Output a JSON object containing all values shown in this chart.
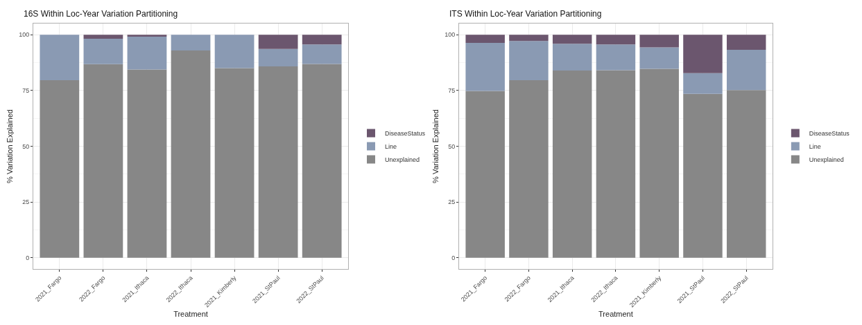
{
  "chart_data": [
    {
      "type": "bar",
      "stacked": true,
      "title": "16S Within Loc-Year Variation Partitioning",
      "xlabel": "Treatment",
      "ylabel": "% Variation Explained",
      "categories": [
        "2021_Fargo",
        "2022_Fargo",
        "2021_Ithaca",
        "2022_Ithaca",
        "2021_Kimberly",
        "2021_StPaul",
        "2022_StPaul"
      ],
      "ylim": [
        -5,
        105
      ],
      "yticks": [
        0,
        25,
        50,
        75,
        100
      ],
      "grid": true,
      "legend": "right",
      "series": [
        {
          "name": "Unexplained",
          "color": "#878787",
          "values": [
            79.6,
            86.8,
            84.4,
            92.9,
            85.0,
            85.8,
            86.9
          ]
        },
        {
          "name": "Line",
          "color": "#8a9ab3",
          "values": [
            20.4,
            11.4,
            14.7,
            7.1,
            15.0,
            7.8,
            8.7
          ]
        },
        {
          "name": "DiseaseStatus",
          "color": "#6b566e",
          "values": [
            0,
            1.8,
            0.9,
            0,
            0,
            6.4,
            4.4
          ]
        }
      ]
    },
    {
      "type": "bar",
      "stacked": true,
      "title": "ITS Within Loc-Year Variation Partitioning",
      "xlabel": "Treatment",
      "ylabel": "% Variation Explained",
      "categories": [
        "2021_Fargo",
        "2022_Fargo",
        "2021_Ithaca",
        "2022_Ithaca",
        "2021_Kimberly",
        "2021_StPaul",
        "2022_StPaul"
      ],
      "ylim": [
        -5,
        105
      ],
      "yticks": [
        0,
        25,
        50,
        75,
        100
      ],
      "grid": true,
      "legend": "right",
      "series": [
        {
          "name": "Unexplained",
          "color": "#878787",
          "values": [
            74.8,
            79.6,
            83.9,
            84.1,
            84.7,
            73.5,
            75.2
          ]
        },
        {
          "name": "Line",
          "color": "#8a9ab3",
          "values": [
            21.5,
            17.6,
            12.0,
            11.5,
            9.6,
            9.3,
            18.0
          ]
        },
        {
          "name": "DiseaseStatus",
          "color": "#6b566e",
          "values": [
            3.7,
            2.8,
            4.1,
            4.4,
            5.7,
            17.2,
            6.8
          ]
        }
      ]
    }
  ]
}
